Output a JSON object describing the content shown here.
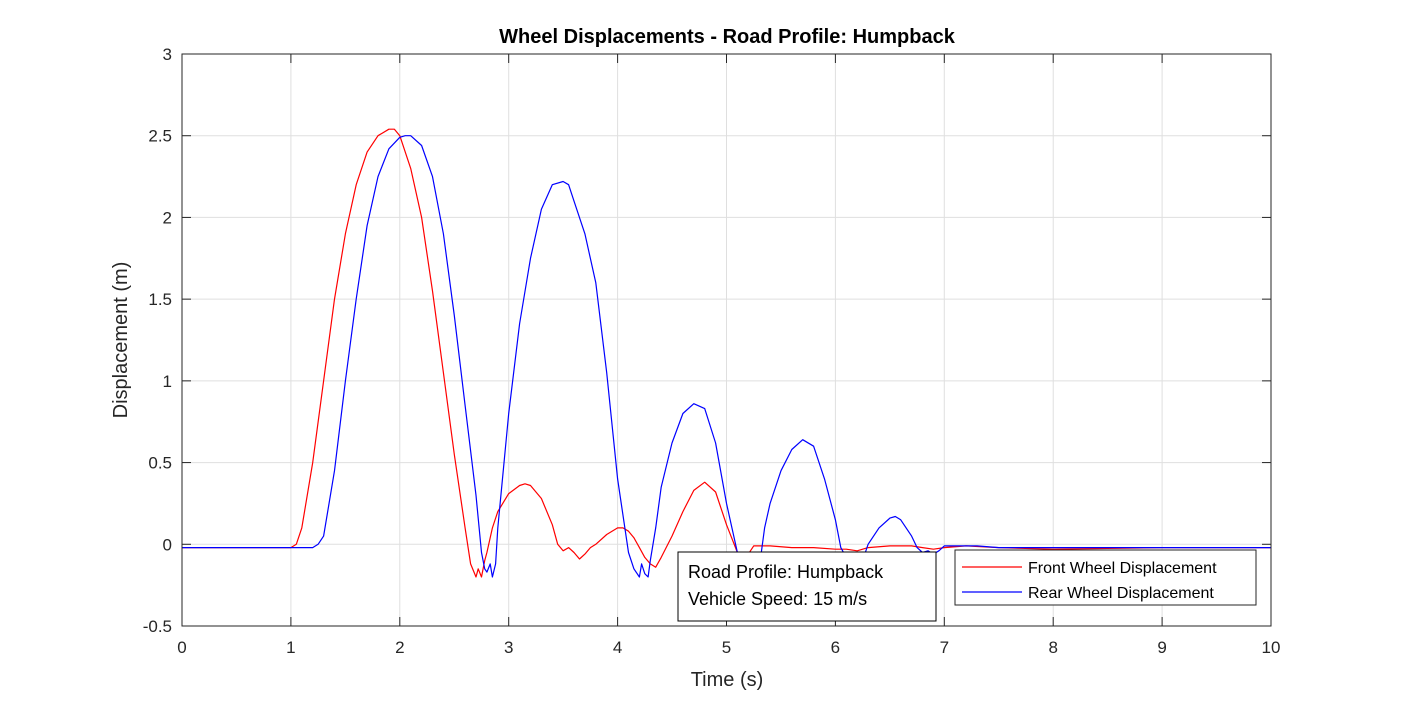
{
  "chart_data": {
    "type": "line",
    "title": "Wheel Displacements - Road Profile: Humpback",
    "xlabel": "Time (s)",
    "ylabel": "Displacement (m)",
    "xlim": [
      0,
      10
    ],
    "ylim": [
      -0.5,
      3
    ],
    "xticks": [
      "0",
      "1",
      "2",
      "3",
      "4",
      "5",
      "6",
      "7",
      "8",
      "9",
      "10"
    ],
    "yticks": [
      "-0.5",
      "0",
      "0.5",
      "1",
      "1.5",
      "2",
      "2.5",
      "3"
    ],
    "grid": true,
    "legend_position": "bottom-right",
    "series": [
      {
        "name": "Front Wheel Displacement",
        "color": "#ff0000",
        "x": [
          0,
          1.0,
          1.05,
          1.1,
          1.2,
          1.3,
          1.4,
          1.5,
          1.6,
          1.7,
          1.8,
          1.9,
          1.95,
          2.0,
          2.1,
          2.2,
          2.3,
          2.4,
          2.5,
          2.6,
          2.65,
          2.7,
          2.72,
          2.75,
          2.78,
          2.8,
          2.85,
          2.9,
          3.0,
          3.1,
          3.15,
          3.2,
          3.3,
          3.4,
          3.45,
          3.5,
          3.55,
          3.6,
          3.65,
          3.7,
          3.75,
          3.8,
          3.9,
          4.0,
          4.05,
          4.1,
          4.15,
          4.2,
          4.25,
          4.3,
          4.35,
          4.4,
          4.5,
          4.6,
          4.7,
          4.8,
          4.9,
          5.0,
          5.1,
          5.15,
          5.2,
          5.25,
          5.3,
          5.4,
          5.6,
          5.8,
          6.0,
          6.1,
          6.2,
          6.3,
          6.5,
          6.7,
          6.8,
          6.9,
          7.0,
          7.2,
          7.5,
          8.0,
          9.0,
          10.0
        ],
        "values": [
          -0.02,
          -0.02,
          0.0,
          0.1,
          0.5,
          1.0,
          1.5,
          1.9,
          2.2,
          2.4,
          2.5,
          2.54,
          2.54,
          2.5,
          2.3,
          2.0,
          1.55,
          1.05,
          0.55,
          0.1,
          -0.12,
          -0.2,
          -0.15,
          -0.2,
          -0.1,
          -0.05,
          0.1,
          0.2,
          0.31,
          0.36,
          0.37,
          0.36,
          0.28,
          0.12,
          0.0,
          -0.04,
          -0.02,
          -0.05,
          -0.09,
          -0.06,
          -0.02,
          0.0,
          0.06,
          0.1,
          0.1,
          0.08,
          0.04,
          -0.02,
          -0.08,
          -0.12,
          -0.14,
          -0.08,
          0.05,
          0.2,
          0.33,
          0.38,
          0.32,
          0.12,
          -0.05,
          -0.09,
          -0.06,
          -0.01,
          -0.01,
          -0.01,
          -0.02,
          -0.02,
          -0.03,
          -0.03,
          -0.04,
          -0.02,
          -0.01,
          -0.01,
          -0.02,
          -0.03,
          -0.02,
          -0.01,
          -0.02,
          -0.03,
          -0.02,
          -0.02
        ]
      },
      {
        "name": "Rear Wheel Displacement",
        "color": "#0000ff",
        "x": [
          0,
          1.2,
          1.25,
          1.3,
          1.4,
          1.5,
          1.6,
          1.7,
          1.8,
          1.9,
          2.0,
          2.05,
          2.1,
          2.2,
          2.3,
          2.4,
          2.5,
          2.6,
          2.7,
          2.75,
          2.78,
          2.8,
          2.83,
          2.85,
          2.88,
          2.9,
          3.0,
          3.1,
          3.2,
          3.3,
          3.4,
          3.5,
          3.55,
          3.6,
          3.7,
          3.8,
          3.9,
          4.0,
          4.1,
          4.15,
          4.2,
          4.22,
          4.25,
          4.28,
          4.3,
          4.35,
          4.4,
          4.5,
          4.6,
          4.7,
          4.8,
          4.9,
          5.0,
          5.1,
          5.15,
          5.2,
          5.25,
          5.28,
          5.32,
          5.35,
          5.4,
          5.5,
          5.6,
          5.7,
          5.8,
          5.9,
          6.0,
          6.05,
          6.1,
          6.15,
          6.2,
          6.25,
          6.3,
          6.4,
          6.5,
          6.55,
          6.6,
          6.7,
          6.75,
          6.8,
          6.85,
          6.9,
          6.95,
          7.0,
          7.1,
          7.3,
          7.5,
          8.0,
          9.0,
          10.0
        ],
        "values": [
          -0.02,
          -0.02,
          0.0,
          0.05,
          0.45,
          1.0,
          1.5,
          1.95,
          2.25,
          2.42,
          2.49,
          2.5,
          2.5,
          2.44,
          2.25,
          1.9,
          1.4,
          0.85,
          0.3,
          -0.05,
          -0.15,
          -0.17,
          -0.12,
          -0.2,
          -0.12,
          0.1,
          0.8,
          1.35,
          1.75,
          2.05,
          2.2,
          2.22,
          2.2,
          2.1,
          1.9,
          1.6,
          1.05,
          0.4,
          -0.05,
          -0.15,
          -0.2,
          -0.12,
          -0.18,
          -0.2,
          -0.1,
          0.1,
          0.35,
          0.62,
          0.8,
          0.86,
          0.83,
          0.62,
          0.25,
          -0.05,
          -0.12,
          -0.16,
          -0.12,
          -0.15,
          -0.05,
          0.1,
          0.25,
          0.45,
          0.58,
          0.64,
          0.6,
          0.4,
          0.15,
          -0.02,
          -0.08,
          -0.12,
          -0.13,
          -0.1,
          0.0,
          0.1,
          0.16,
          0.17,
          0.15,
          0.05,
          -0.02,
          -0.05,
          -0.04,
          -0.06,
          -0.04,
          -0.01,
          -0.01,
          -0.01,
          -0.02,
          -0.02,
          -0.02,
          -0.02
        ]
      }
    ],
    "annotation_lines": [
      "Road Profile: Humpback",
      "Vehicle Speed: 15 m/s"
    ]
  }
}
